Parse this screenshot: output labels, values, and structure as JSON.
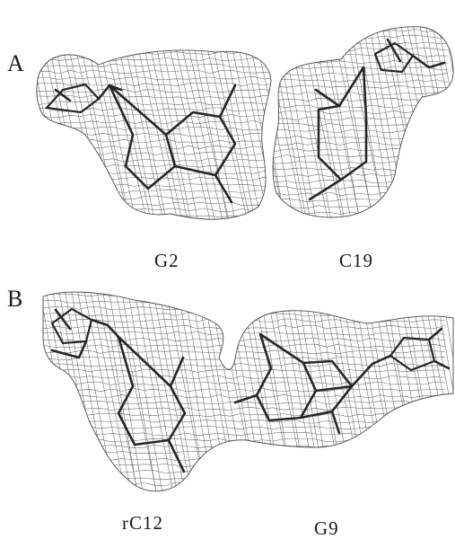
{
  "panels": [
    {
      "letter": "A",
      "labels": [
        "G2",
        "C19"
      ]
    },
    {
      "letter": "B",
      "labels": [
        "rC12",
        "G9"
      ]
    }
  ]
}
